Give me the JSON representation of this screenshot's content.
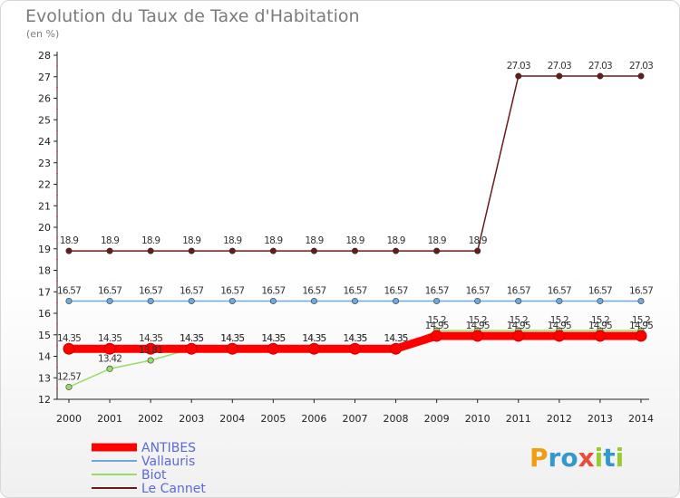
{
  "chart_data": {
    "type": "line",
    "title": "Evolution du Taux de Taxe d'Habitation",
    "subtitle": "(en %)",
    "x": [
      "2000",
      "2001",
      "2002",
      "2003",
      "2004",
      "2005",
      "2006",
      "2007",
      "2008",
      "2009",
      "2010",
      "2011",
      "2012",
      "2013",
      "2014"
    ],
    "ylim": [
      12,
      28
    ],
    "yticks": [
      12,
      13,
      14,
      15,
      16,
      17,
      18,
      19,
      20,
      21,
      22,
      23,
      24,
      25,
      26,
      27,
      28
    ],
    "grid": false,
    "legend_position": "bottom-left",
    "series": [
      {
        "name": "ANTIBES",
        "color": "#ff0000",
        "width": 9,
        "values": [
          14.35,
          14.35,
          14.35,
          14.35,
          14.35,
          14.35,
          14.35,
          14.35,
          14.35,
          14.95,
          14.95,
          14.95,
          14.95,
          14.95,
          14.95
        ],
        "labels": [
          "14.35",
          "14.35",
          "14.35",
          "14.35",
          "14.35",
          "14.35",
          "14.35",
          "14.35",
          "14.35",
          "14.95",
          "14.95",
          "14.95",
          "14.95",
          "14.95",
          "14.95"
        ]
      },
      {
        "name": "Vallauris",
        "color": "#6fa8dc",
        "width": 1.5,
        "values": [
          16.57,
          16.57,
          16.57,
          16.57,
          16.57,
          16.57,
          16.57,
          16.57,
          16.57,
          16.57,
          16.57,
          16.57,
          16.57,
          16.57,
          16.57
        ],
        "labels": [
          "16.57",
          "16.57",
          "16.57",
          "16.57",
          "16.57",
          "16.57",
          "16.57",
          "16.57",
          "16.57",
          "16.57",
          "16.57",
          "16.57",
          "16.57",
          "16.57",
          "16.57"
        ]
      },
      {
        "name": "Biot",
        "color": "#99dd66",
        "width": 1.5,
        "values": [
          12.57,
          13.42,
          13.81,
          14.35,
          14.35,
          14.35,
          14.35,
          14.35,
          14.35,
          15.2,
          15.2,
          15.2,
          15.2,
          15.2,
          15.2
        ],
        "labels": [
          "12.57",
          "13.42",
          "13.81",
          "14.35",
          "14.35",
          "14.35",
          "14.35",
          "14.35",
          "14.35",
          "15.2",
          "15.2",
          "15.2",
          "15.2",
          "15.2",
          "15.2"
        ]
      },
      {
        "name": "Le Cannet",
        "color": "#6b1a1a",
        "width": 1.5,
        "values": [
          18.9,
          18.9,
          18.9,
          18.9,
          18.9,
          18.9,
          18.9,
          18.9,
          18.9,
          18.9,
          18.9,
          27.03,
          27.03,
          27.03,
          27.03
        ],
        "labels": [
          "18.9",
          "18.9",
          "18.9",
          "18.9",
          "18.9",
          "18.9",
          "18.9",
          "18.9",
          "18.9",
          "18.9",
          "18.9",
          "27.03",
          "27.03",
          "27.03",
          "27.03"
        ]
      }
    ]
  },
  "logo": {
    "letters": [
      {
        "ch": "P",
        "color": "#f39c12"
      },
      {
        "ch": "r",
        "color": "#3399cc"
      },
      {
        "ch": "o",
        "color": "#3399cc"
      },
      {
        "ch": "x",
        "color": "#e74c3c"
      },
      {
        "ch": "i",
        "color": "#99cc33"
      },
      {
        "ch": "t",
        "color": "#3399cc"
      },
      {
        "ch": "i",
        "color": "#99cc33"
      }
    ]
  }
}
